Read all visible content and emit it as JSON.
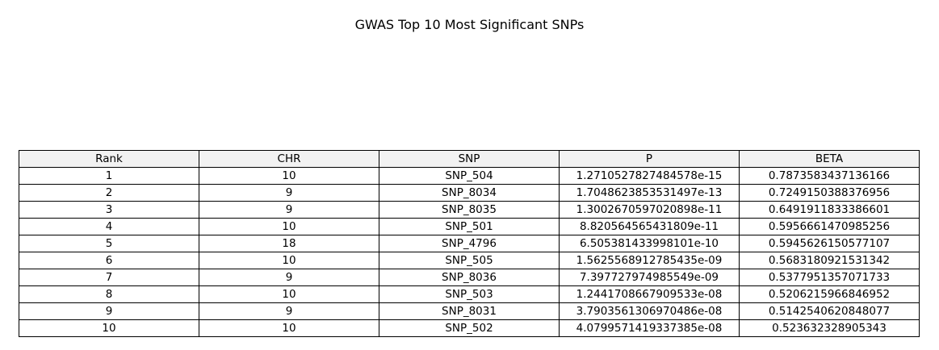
{
  "chart_data": {
    "type": "table",
    "title": "GWAS Top 10 Most Significant SNPs",
    "columns": [
      "Rank",
      "CHR",
      "SNP",
      "P",
      "BETA"
    ],
    "rows": [
      [
        "1",
        "10",
        "SNP_504",
        "1.2710527827484578e-15",
        "0.7873583437136166"
      ],
      [
        "2",
        "9",
        "SNP_8034",
        "1.7048623853531497e-13",
        "0.7249150388376956"
      ],
      [
        "3",
        "9",
        "SNP_8035",
        "1.3002670597020898e-11",
        "0.6491911833386601"
      ],
      [
        "4",
        "10",
        "SNP_501",
        "8.820564565431809e-11",
        "0.5956661470985256"
      ],
      [
        "5",
        "18",
        "SNP_4796",
        "6.505381433998101e-10",
        "0.5945626150577107"
      ],
      [
        "6",
        "10",
        "SNP_505",
        "1.5625568912785435e-09",
        "0.5683180921531342"
      ],
      [
        "7",
        "9",
        "SNP_8036",
        "7.397727974985549e-09",
        "0.5377951357071733"
      ],
      [
        "8",
        "10",
        "SNP_503",
        "1.2441708667909533e-08",
        "0.5206215966846952"
      ],
      [
        "9",
        "9",
        "SNP_8031",
        "3.7903561306970486e-08",
        "0.5142540620848077"
      ],
      [
        "10",
        "10",
        "SNP_502",
        "4.0799571419337385e-08",
        "0.523632328905343"
      ]
    ],
    "header_background": "#f2f2f2",
    "border_color": "#000000"
  }
}
